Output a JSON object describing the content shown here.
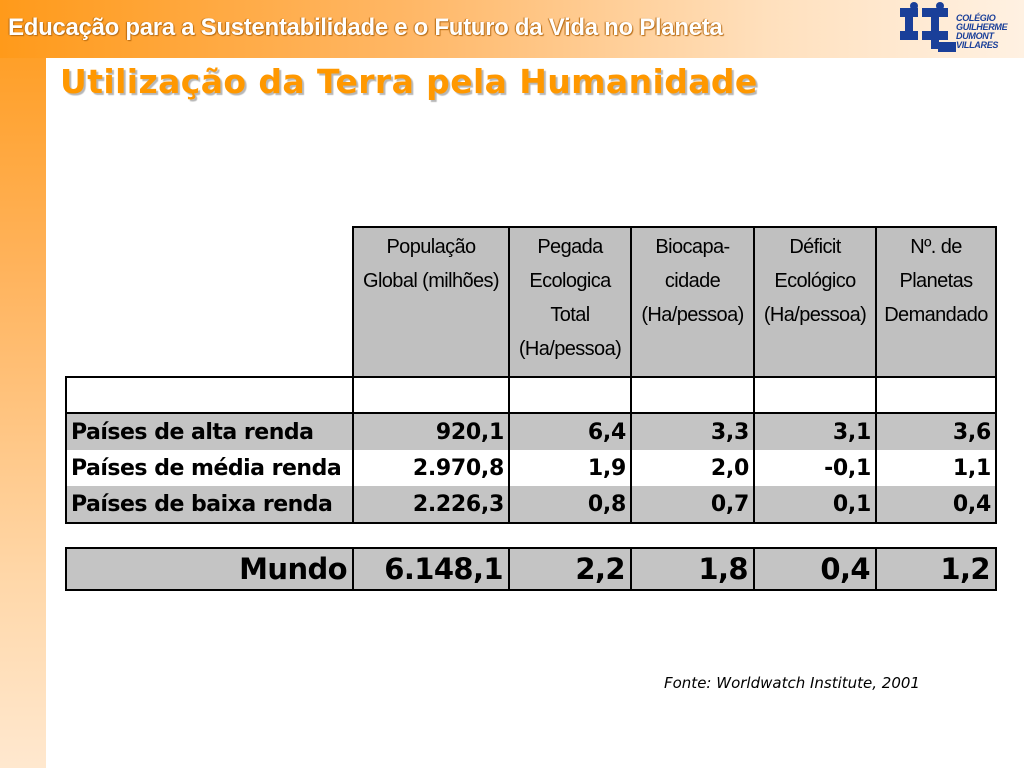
{
  "header": {
    "banner_title": "Educação para a Sustentabilidade e o Futuro da Vida no Planeta",
    "logo_lines": [
      "COLÉGIO",
      "GUILHERME",
      "DUMONT",
      "VILLARES"
    ]
  },
  "slide": {
    "title": "Utilização da Terra pela Humanidade"
  },
  "table": {
    "headers": [
      "População Global (milhões)",
      "Pegada Ecologica Total (Ha/pessoa)",
      "Biocapa-cidade (Ha/pessoa)",
      "Déficit Ecológico (Ha/pessoa)",
      "Nº. de Planetas Demandado"
    ],
    "header_lines": [
      [
        "População",
        "Global (milhões)"
      ],
      [
        "Pegada",
        "Ecologica",
        "Total",
        "(Ha/pessoa)"
      ],
      [
        "Biocapa-",
        "cidade",
        "(Ha/pessoa)"
      ],
      [
        "Déficit",
        "Ecológico",
        "(Ha/pessoa)"
      ],
      [
        "Nº. de",
        "Planetas",
        "Demandado"
      ]
    ],
    "rows": [
      {
        "label": "Países de alta renda",
        "values": [
          "920,1",
          "6,4",
          "3,3",
          "3,1",
          "3,6"
        ]
      },
      {
        "label": "Países de média renda",
        "values": [
          "2.970,8",
          "1,9",
          "2,0",
          "-0,1",
          "1,1"
        ]
      },
      {
        "label": "Países de baixa renda",
        "values": [
          "2.226,3",
          "0,8",
          "0,7",
          "0,1",
          "0,4"
        ]
      }
    ],
    "world": {
      "label": "Mundo",
      "values": [
        "6.148,1",
        "2,2",
        "1,8",
        "0,4",
        "1,2"
      ]
    }
  },
  "source": "Fonte: Worldwatch Institute, 2001",
  "colors": {
    "banner_orange": "#ff9a1a",
    "title_orange": "#ff9800",
    "cell_gray": "#c4c4c4",
    "logo_blue": "#1a3f99"
  }
}
